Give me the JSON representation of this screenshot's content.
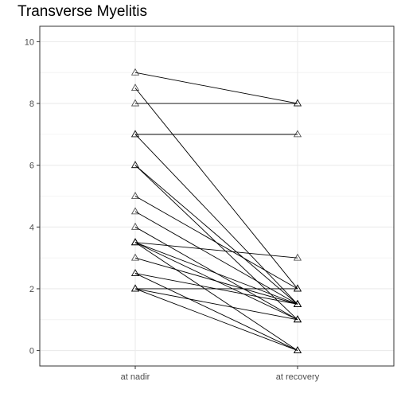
{
  "chart_data": {
    "type": "line",
    "title": "Transverse Myelitis",
    "xlabel": "",
    "ylabel": "",
    "categories": [
      "at nadir",
      "at recovery"
    ],
    "ylim": [
      -0.5,
      10.5
    ],
    "yticks": [
      0,
      2,
      4,
      6,
      8,
      10
    ],
    "grid": true,
    "marker": "open-triangle",
    "pairs": [
      [
        9,
        8
      ],
      [
        8.5,
        2
      ],
      [
        8,
        8
      ],
      [
        7,
        7
      ],
      [
        7,
        1.5
      ],
      [
        6,
        1.5
      ],
      [
        6,
        1
      ],
      [
        5,
        2
      ],
      [
        4.5,
        1.5
      ],
      [
        4,
        1
      ],
      [
        3.5,
        3
      ],
      [
        3.5,
        1.5
      ],
      [
        3.5,
        1
      ],
      [
        3.5,
        0
      ],
      [
        3,
        1.5
      ],
      [
        2.5,
        0
      ],
      [
        2.5,
        1.5
      ],
      [
        2,
        2
      ],
      [
        2,
        0
      ],
      [
        2,
        1
      ]
    ],
    "colors": {
      "line": "#000000",
      "marker": "#000000",
      "panel_border": "#333333",
      "grid": "#ebebeb"
    }
  }
}
